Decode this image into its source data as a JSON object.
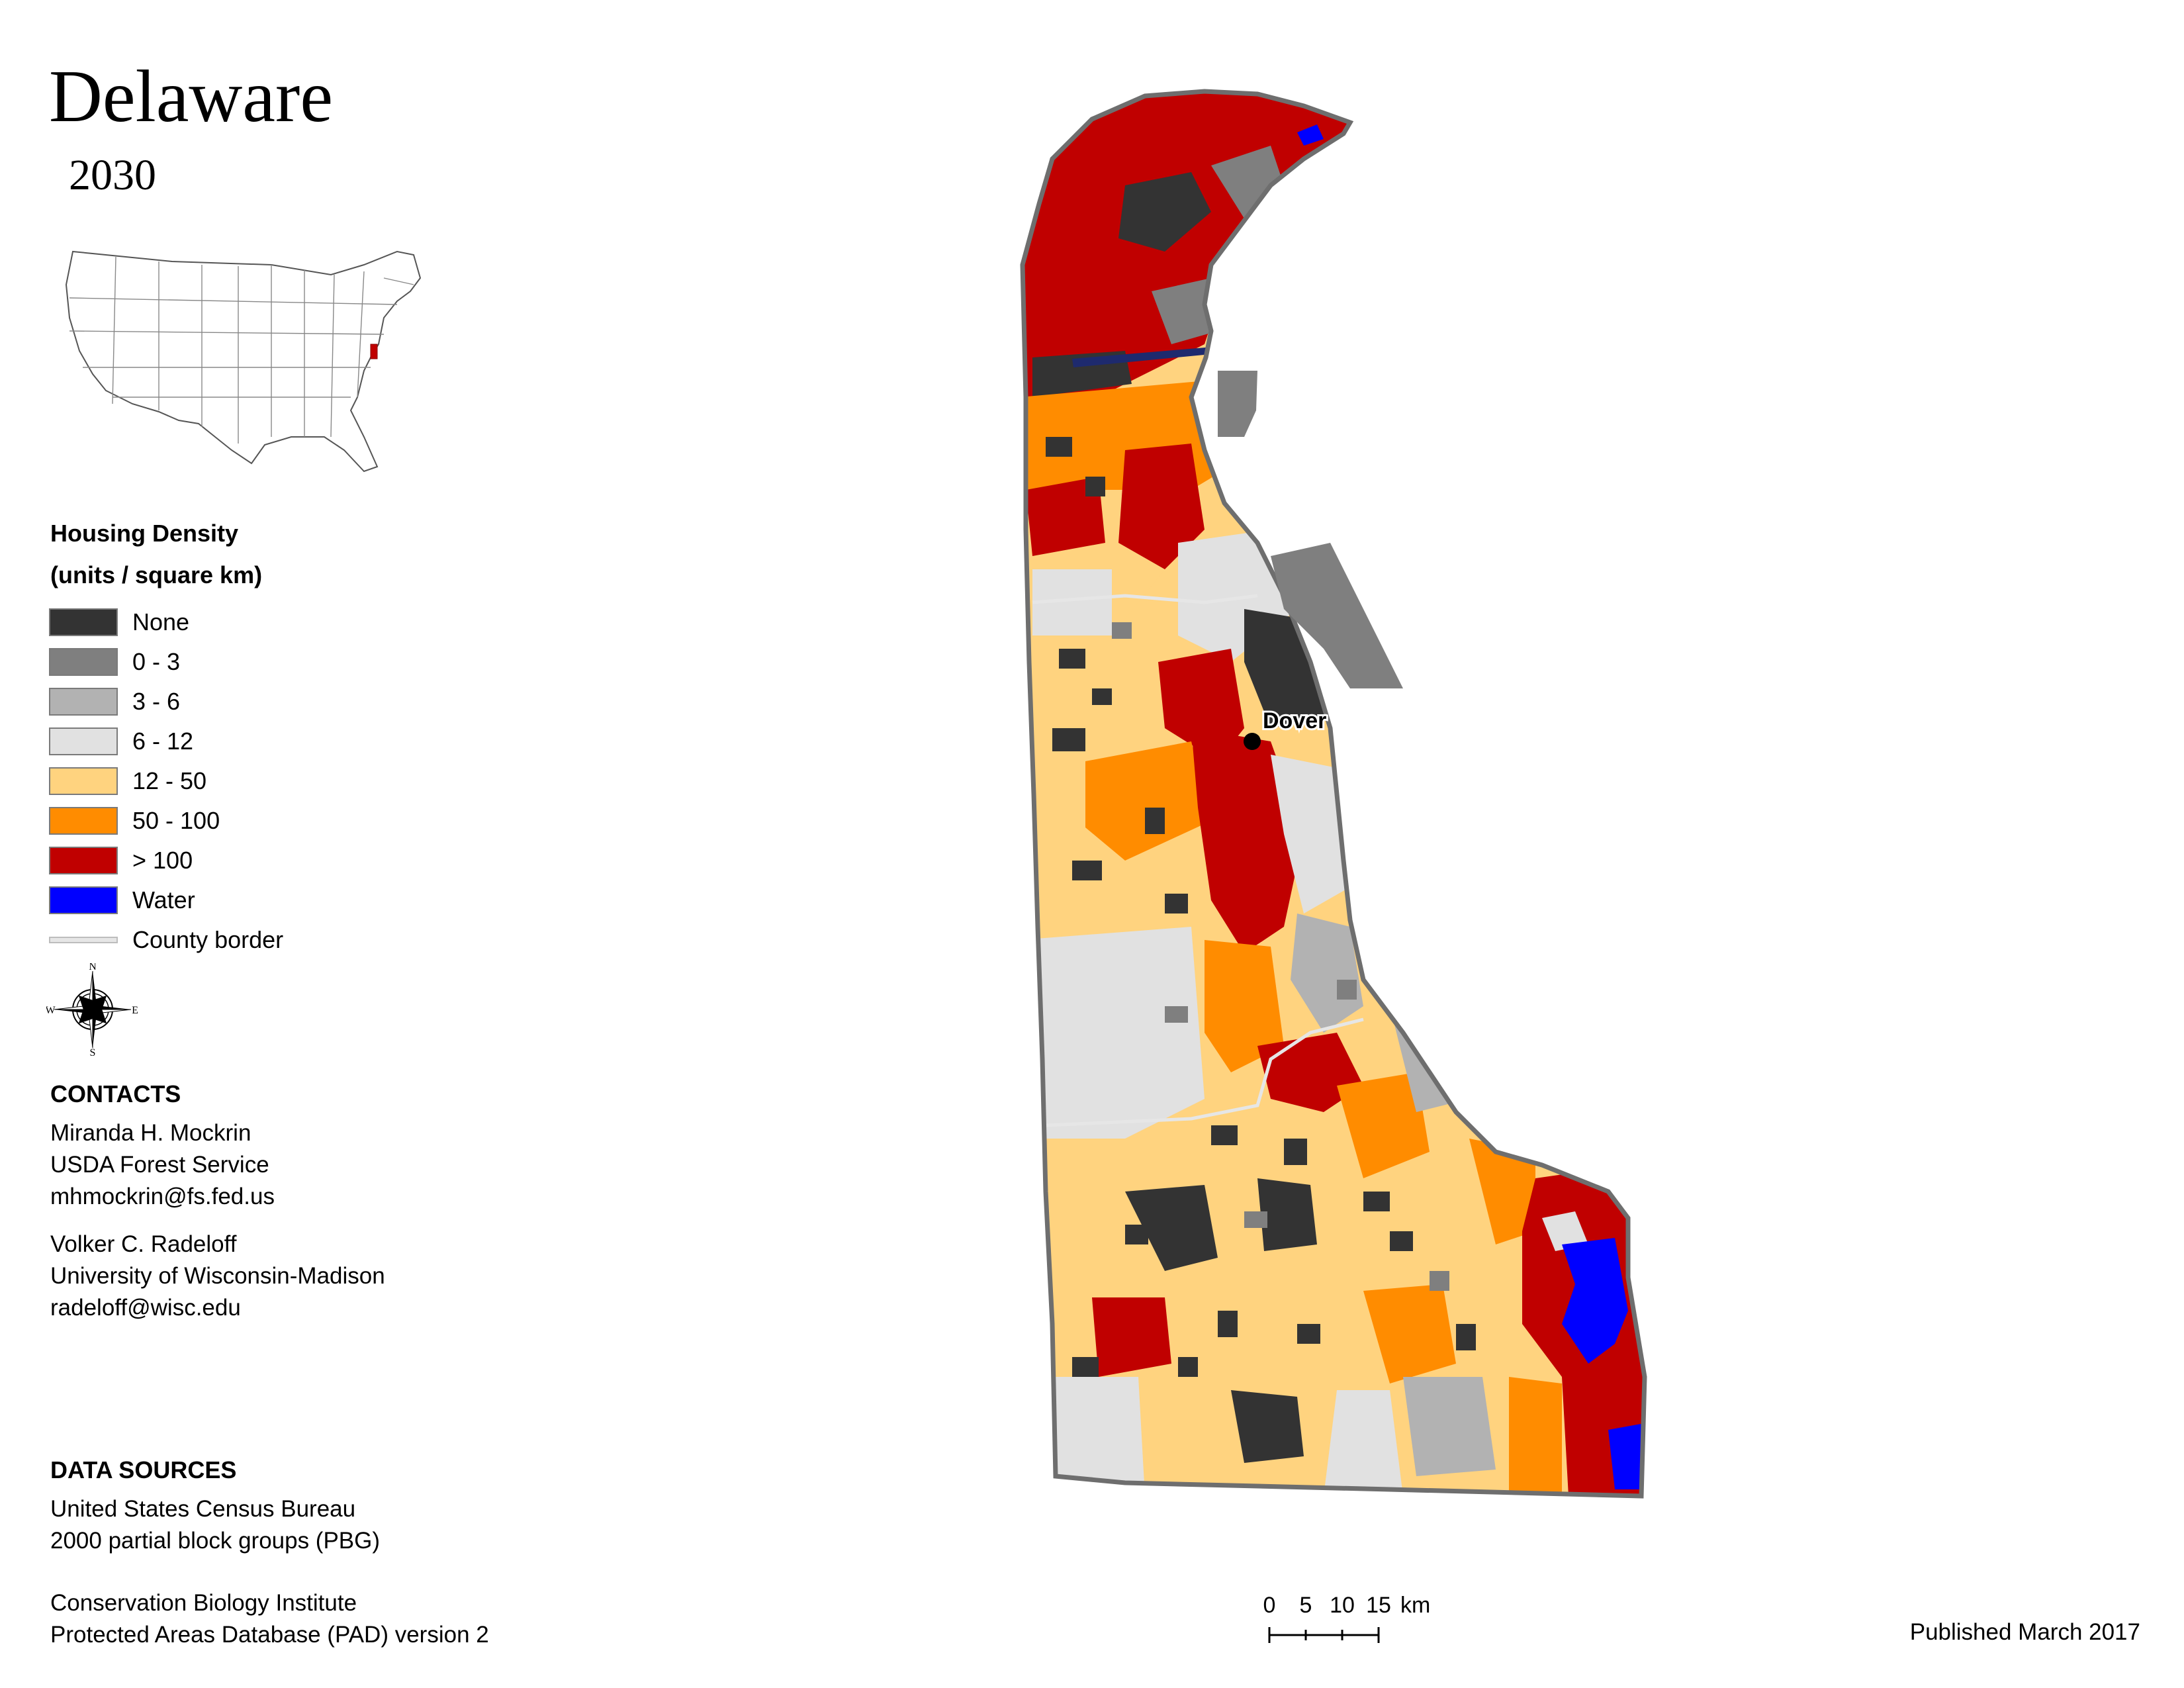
{
  "title": "Delaware",
  "subtitle": "2030",
  "legend": {
    "title_line1": "Housing Density",
    "title_line2": "(units / square km)",
    "items": [
      {
        "label": "None",
        "color": "#333333"
      },
      {
        "label": "0 - 3",
        "color": "#7f7f7f"
      },
      {
        "label": "3 - 6",
        "color": "#b2b2b2"
      },
      {
        "label": "6 - 12",
        "color": "#e1e1e1"
      },
      {
        "label": "12 - 50",
        "color": "#ffd37f"
      },
      {
        "label": "50 - 100",
        "color": "#ff8c00"
      },
      {
        "label": "> 100",
        "color": "#c00000"
      },
      {
        "label": "Water",
        "color": "#0000ff"
      }
    ],
    "county_border_label": "County border"
  },
  "compass": {
    "n": "N",
    "s": "S",
    "e": "E",
    "w": "W"
  },
  "contacts": {
    "heading": "CONTACTS",
    "person1": {
      "name": "Miranda H. Mockrin",
      "org": "USDA Forest Service",
      "email": "mhmockrin@fs.fed.us"
    },
    "person2": {
      "name": "Volker C. Radeloff",
      "org": "University of Wisconsin-Madison",
      "email": "radeloff@wisc.edu"
    }
  },
  "data_sources": {
    "heading": "DATA SOURCES",
    "line1": "United States Census Bureau",
    "line2": "2000 partial block groups (PBG)",
    "line3": "Conservation Biology Institute",
    "line4": "Protected Areas Database (PAD) version 2"
  },
  "map": {
    "city_label": "Dover"
  },
  "scale_bar": {
    "ticks": [
      "0",
      "5",
      "10",
      "15"
    ],
    "unit": "km"
  },
  "published": "Published March 2017"
}
